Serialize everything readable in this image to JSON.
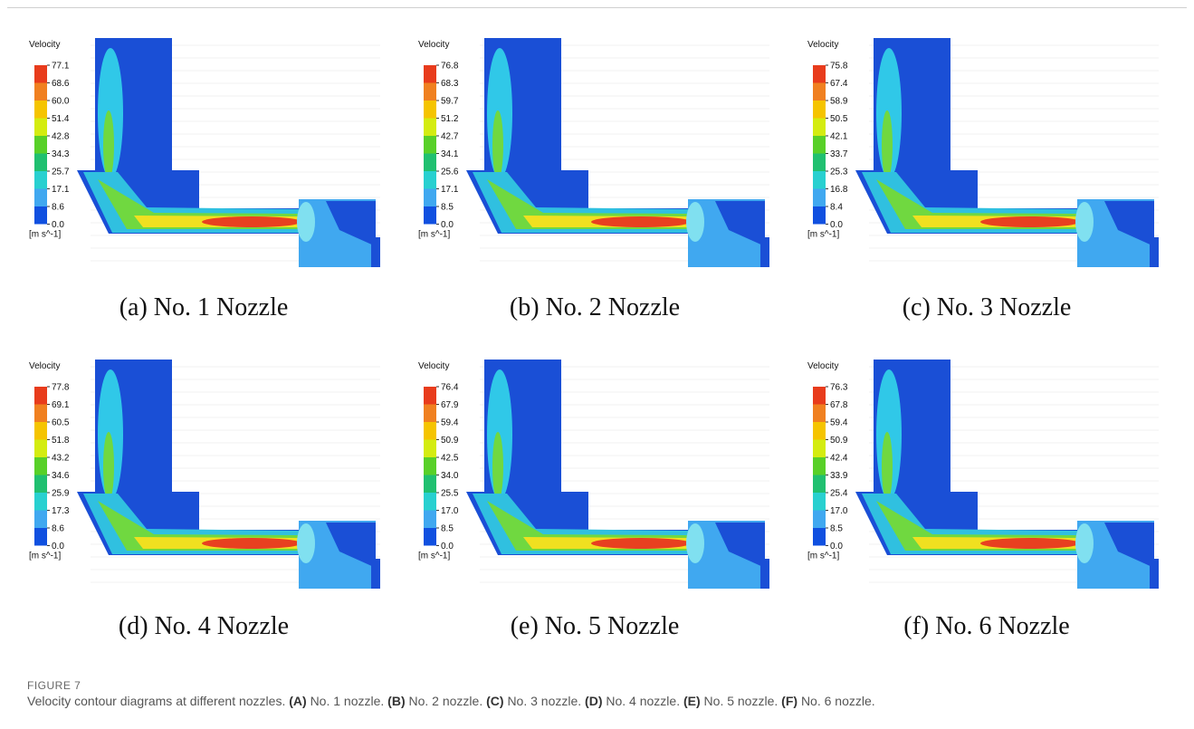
{
  "figure": {
    "label": "FIGURE 7",
    "caption": {
      "intro": "Velocity contour diagrams at different nozzles.",
      "items": [
        {
          "label": "(A)",
          "text": "No. 1 nozzle."
        },
        {
          "label": "(B)",
          "text": "No. 2 nozzle."
        },
        {
          "label": "(C)",
          "text": "No. 3 nozzle."
        },
        {
          "label": "(D)",
          "text": "No. 4 nozzle."
        },
        {
          "label": "(E)",
          "text": "No. 5 nozzle."
        },
        {
          "label": "(F)",
          "text": "No. 6 nozzle."
        }
      ]
    }
  },
  "panels": [
    {
      "caption": "(a) No. 1 Nozzle",
      "legend": {
        "title": "Velocity",
        "unit": "[m s^-1]",
        "ticks": [
          "77.1",
          "68.6",
          "60.0",
          "51.4",
          "42.8",
          "34.3",
          "25.7",
          "17.1",
          "8.6",
          "0.0"
        ]
      }
    },
    {
      "caption": "(b) No. 2 Nozzle",
      "legend": {
        "title": "Velocity",
        "unit": "[m s^-1]",
        "ticks": [
          "76.8",
          "68.3",
          "59.7",
          "51.2",
          "42.7",
          "34.1",
          "25.6",
          "17.1",
          "8.5",
          "0.0"
        ]
      }
    },
    {
      "caption": "(c) No. 3 Nozzle",
      "legend": {
        "title": "Velocity",
        "unit": "[m s^-1]",
        "ticks": [
          "75.8",
          "67.4",
          "58.9",
          "50.5",
          "42.1",
          "33.7",
          "25.3",
          "16.8",
          "8.4",
          "0.0"
        ]
      }
    },
    {
      "caption": "(d) No. 4 Nozzle",
      "legend": {
        "title": "Velocity",
        "unit": "[m s^-1]",
        "ticks": [
          "77.8",
          "69.1",
          "60.5",
          "51.8",
          "43.2",
          "34.6",
          "25.9",
          "17.3",
          "8.6",
          "0.0"
        ]
      }
    },
    {
      "caption": "(e) No. 5 Nozzle",
      "legend": {
        "title": "Velocity",
        "unit": "[m s^-1]",
        "ticks": [
          "76.4",
          "67.9",
          "59.4",
          "50.9",
          "42.5",
          "34.0",
          "25.5",
          "17.0",
          "8.5",
          "0.0"
        ]
      }
    },
    {
      "caption": "(f) No. 6 Nozzle",
      "legend": {
        "title": "Velocity",
        "unit": "[m s^-1]",
        "ticks": [
          "76.3",
          "67.8",
          "59.4",
          "50.9",
          "42.4",
          "33.9",
          "25.4",
          "17.0",
          "8.5",
          "0.0"
        ]
      }
    }
  ]
}
